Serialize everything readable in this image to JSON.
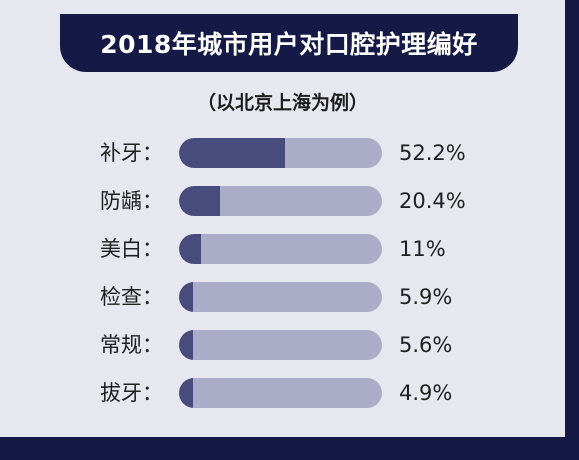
{
  "chart_data": {
    "type": "bar",
    "orientation": "horizontal",
    "title": "2018年城市用户对口腔护理编好",
    "subtitle": "（以北京上海为例）",
    "categories": [
      "补牙：",
      "防龋：",
      "美白：",
      "检查：",
      "常规：",
      "拔牙："
    ],
    "values": [
      52.2,
      20.4,
      11,
      5.9,
      5.6,
      4.9
    ],
    "value_labels": [
      "52.2%",
      "20.4%",
      "11%",
      "5.9%",
      "5.6%",
      "4.9%"
    ],
    "xlim": [
      0,
      100
    ],
    "grid": false,
    "legend": "none"
  },
  "colors": {
    "background": "#e7e7ef",
    "frame": "#151a45",
    "banner": "#141945",
    "bar_fill": "#484c7c",
    "bar_track": "#abadc8"
  }
}
